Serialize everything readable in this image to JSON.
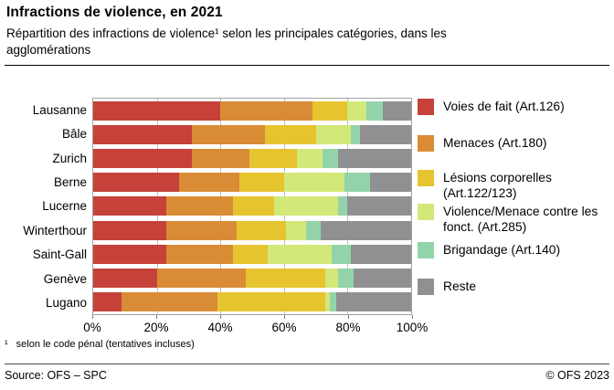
{
  "header": {
    "title": "Infractions de violence, en 2021",
    "subtitle": "Répartition des infractions de violence¹ selon les principales catégories, dans les agglomérations"
  },
  "chart_data": {
    "type": "bar",
    "variant": "horizontal-stacked-100pct",
    "unit": "%",
    "grid": true,
    "legend_position": "right",
    "xlim": [
      0,
      100
    ],
    "x_ticks": [
      "0%",
      "20%",
      "40%",
      "60%",
      "80%",
      "100%"
    ],
    "categories": [
      "Lausanne",
      "Bâle",
      "Zurich",
      "Berne",
      "Lucerne",
      "Winterthour",
      "Saint-Gall",
      "Genève",
      "Lugano"
    ],
    "series": [
      {
        "name": "Voies de fait (Art.126)",
        "color": "#c5413a",
        "values": [
          40,
          31,
          31,
          27,
          23,
          23,
          23,
          20,
          9
        ]
      },
      {
        "name": "Menaces (Art.180)",
        "color": "#d98c35",
        "values": [
          29,
          23,
          18,
          19,
          21,
          22,
          21,
          28,
          30
        ]
      },
      {
        "name": "Lésions corporelles (Art.122/123)",
        "color": "#e6c42f",
        "values": [
          11,
          16,
          15,
          14,
          13,
          15.5,
          11,
          25,
          34
        ]
      },
      {
        "name": "Violence/Menace contre les fonct. (Art.285)",
        "color": "#d2e878",
        "values": [
          6,
          11,
          8,
          19,
          20,
          6.5,
          20,
          4,
          1.5
        ]
      },
      {
        "name": "Brigandage (Art.140)",
        "color": "#93d3aa",
        "values": [
          5,
          3,
          5,
          8,
          3,
          4.5,
          6,
          5,
          2
        ]
      },
      {
        "name": "Reste",
        "color": "#909092",
        "values": [
          9,
          16,
          23,
          13,
          20,
          28.5,
          19,
          18,
          23.5
        ]
      }
    ]
  },
  "footnote": {
    "marker": "¹",
    "text": "selon le code pénal (tentatives incluses)"
  },
  "footer": {
    "source": "Source: OFS – SPC",
    "copyright": "© OFS 2023"
  }
}
